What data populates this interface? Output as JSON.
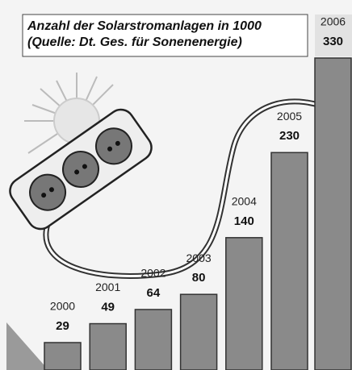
{
  "chart_data": {
    "type": "bar",
    "title": "Anzahl der Solarstromanlagen in 1000",
    "subtitle": "(Quelle: Dt. Ges. für Sonenenergie)",
    "categories": [
      "2000",
      "2001",
      "2002",
      "2003",
      "2004",
      "2005",
      "2006"
    ],
    "values": [
      29,
      49,
      64,
      80,
      140,
      230,
      330
    ],
    "color": "#8a8a8a"
  }
}
